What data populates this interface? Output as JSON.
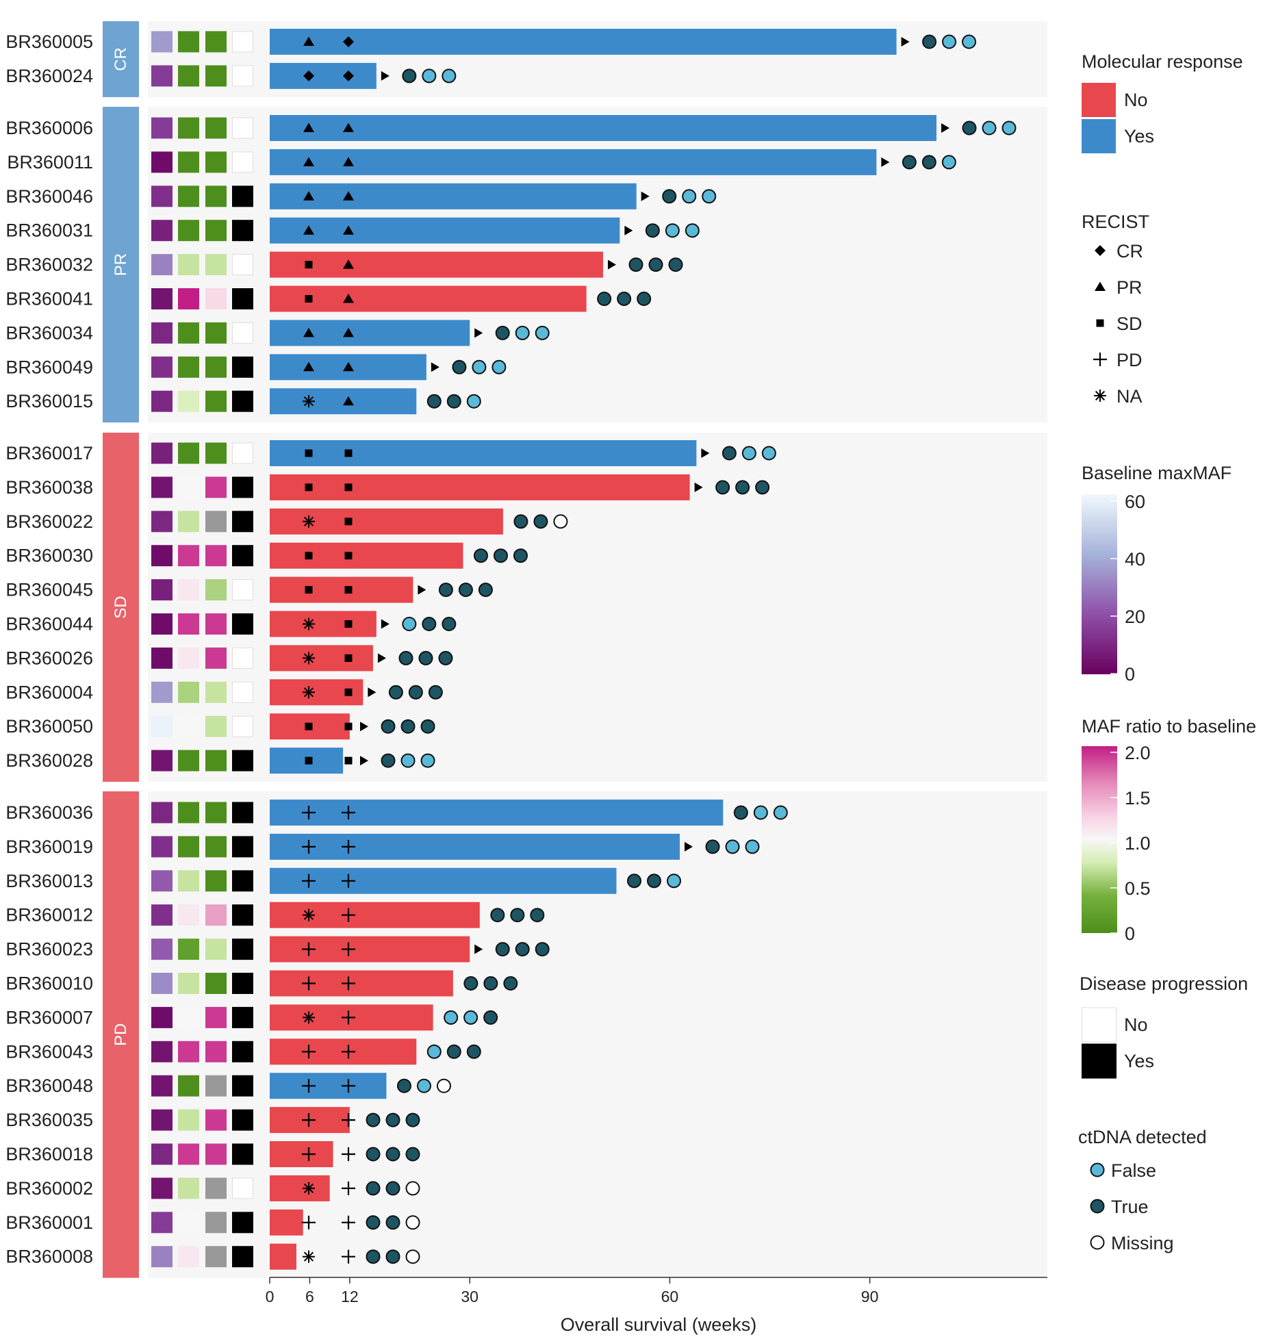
{
  "colors": {
    "response_no": "#E8474E",
    "response_yes": "#3D8ACB",
    "group_cr": "#6FA3D2",
    "group_pr": "#6FA3D2",
    "group_sd": "#E86369",
    "group_pd": "#E86369",
    "panel_bg": "#F6F6F6",
    "ctdna_false": "#5AB9D9",
    "ctdna_true": "#1E5563",
    "ctdna_missing": "#FFFFFF",
    "progression_yes": "#000000",
    "progression_no": "#FFFFFF"
  },
  "chart_data": {
    "type": "swimmer",
    "xlabel": "Overall survival (weeks)",
    "x_ticks": [
      0,
      6,
      12,
      30,
      60,
      90
    ],
    "xlim": [
      0,
      117
    ],
    "groups": [
      {
        "name": "CR",
        "patients": [
          {
            "id": "BR360005",
            "os": 94,
            "response": "Yes",
            "recist": [
              "PR",
              "CR"
            ],
            "ongoing": true,
            "maxmaf": 35,
            "maf_ratio": [
              0,
              0
            ],
            "progression": "No",
            "ctdna": [
              "True",
              "False",
              "False"
            ]
          },
          {
            "id": "BR360024",
            "os": 16,
            "response": "Yes",
            "recist": [
              "CR",
              "CR"
            ],
            "ongoing": true,
            "maxmaf": 15,
            "maf_ratio": [
              0,
              0
            ],
            "progression": "No",
            "ctdna": [
              "True",
              "False",
              "False"
            ]
          }
        ]
      },
      {
        "name": "PR",
        "patients": [
          {
            "id": "BR360006",
            "os": 100,
            "response": "Yes",
            "recist": [
              "PR",
              "PR"
            ],
            "ongoing": true,
            "maxmaf": 15,
            "maf_ratio": [
              0,
              0
            ],
            "progression": "No",
            "ctdna": [
              "True",
              "False",
              "False"
            ]
          },
          {
            "id": "BR360011",
            "os": 91,
            "response": "Yes",
            "recist": [
              "PR",
              "PR"
            ],
            "ongoing": true,
            "maxmaf": 3,
            "maf_ratio": [
              0,
              0
            ],
            "progression": "No",
            "ctdna": [
              "True",
              "True",
              "False"
            ]
          },
          {
            "id": "BR360046",
            "os": 55,
            "response": "Yes",
            "recist": [
              "PR",
              "PR"
            ],
            "ongoing": true,
            "maxmaf": 12,
            "maf_ratio": [
              0,
              0
            ],
            "progression": "Yes",
            "ctdna": [
              "True",
              "False",
              "False"
            ]
          },
          {
            "id": "BR360031",
            "os": 52.5,
            "response": "Yes",
            "recist": [
              "PR",
              "PR"
            ],
            "ongoing": true,
            "maxmaf": 8,
            "maf_ratio": [
              0,
              0
            ],
            "progression": "Yes",
            "ctdna": [
              "True",
              "False",
              "False"
            ]
          },
          {
            "id": "BR360032",
            "os": 50,
            "response": "No",
            "recist": [
              "SD",
              "PR"
            ],
            "ongoing": true,
            "maxmaf": 30,
            "maf_ratio": [
              0.7,
              0.7
            ],
            "progression": "No",
            "ctdna": [
              "True",
              "True",
              "True"
            ]
          },
          {
            "id": "BR360041",
            "os": 47.5,
            "response": "No",
            "recist": [
              "SD",
              "PR"
            ],
            "ongoing": false,
            "maxmaf": 5,
            "maf_ratio": [
              2.0,
              1.2
            ],
            "progression": "Yes",
            "ctdna": [
              "True",
              "True",
              "True"
            ]
          },
          {
            "id": "BR360034",
            "os": 30,
            "response": "Yes",
            "recist": [
              "PR",
              "PR"
            ],
            "ongoing": true,
            "maxmaf": 10,
            "maf_ratio": [
              0,
              0
            ],
            "progression": "No",
            "ctdna": [
              "True",
              "False",
              "False"
            ]
          },
          {
            "id": "BR360049",
            "os": 23.5,
            "response": "Yes",
            "recist": [
              "PR",
              "PR"
            ],
            "ongoing": true,
            "maxmaf": 12,
            "maf_ratio": [
              0,
              0
            ],
            "progression": "Yes",
            "ctdna": [
              "True",
              "False",
              "False"
            ]
          },
          {
            "id": "BR360015",
            "os": 22,
            "response": "Yes",
            "recist": [
              "NA",
              "PR"
            ],
            "ongoing": false,
            "maxmaf": 10,
            "maf_ratio": [
              0.8,
              0
            ],
            "progression": "Yes",
            "ctdna": [
              "True",
              "True",
              "False"
            ]
          }
        ]
      },
      {
        "name": "SD",
        "patients": [
          {
            "id": "BR360017",
            "os": 64,
            "response": "Yes",
            "recist": [
              "SD",
              "SD"
            ],
            "ongoing": true,
            "maxmaf": 8,
            "maf_ratio": [
              0,
              0
            ],
            "progression": "No",
            "ctdna": [
              "True",
              "False",
              "False"
            ]
          },
          {
            "id": "BR360038",
            "os": 63,
            "response": "No",
            "recist": [
              "SD",
              "SD"
            ],
            "ongoing": true,
            "maxmaf": 5,
            "maf_ratio": [
              1.0,
              1.9
            ],
            "progression": "Yes",
            "ctdna": [
              "True",
              "True",
              "True"
            ]
          },
          {
            "id": "BR360022",
            "os": 35,
            "response": "No",
            "recist": [
              "NA",
              "SD"
            ],
            "ongoing": false,
            "maxmaf": 10,
            "maf_ratio": [
              0.7,
              "NA"
            ],
            "progression": "Yes",
            "ctdna": [
              "True",
              "True",
              "Missing"
            ]
          },
          {
            "id": "BR360030",
            "os": 29,
            "response": "No",
            "recist": [
              "SD",
              "SD"
            ],
            "ongoing": false,
            "maxmaf": 3,
            "maf_ratio": [
              1.9,
              1.9
            ],
            "progression": "Yes",
            "ctdna": [
              "True",
              "True",
              "True"
            ]
          },
          {
            "id": "BR360045",
            "os": 21.5,
            "response": "No",
            "recist": [
              "SD",
              "SD"
            ],
            "ongoing": true,
            "maxmaf": 8,
            "maf_ratio": [
              1.1,
              0.6
            ],
            "progression": "No",
            "ctdna": [
              "True",
              "True",
              "True"
            ]
          },
          {
            "id": "BR360044",
            "os": 16,
            "response": "No",
            "recist": [
              "NA",
              "SD"
            ],
            "ongoing": true,
            "maxmaf": 3,
            "maf_ratio": [
              1.9,
              1.9
            ],
            "progression": "Yes",
            "ctdna": [
              "False",
              "True",
              "True"
            ]
          },
          {
            "id": "BR360026",
            "os": 15.5,
            "response": "No",
            "recist": [
              "NA",
              "SD"
            ],
            "ongoing": true,
            "maxmaf": 3,
            "maf_ratio": [
              1.1,
              1.9
            ],
            "progression": "No",
            "ctdna": [
              "True",
              "True",
              "True"
            ]
          },
          {
            "id": "BR360004",
            "os": 14,
            "response": "No",
            "recist": [
              "NA",
              "SD"
            ],
            "ongoing": true,
            "maxmaf": 35,
            "maf_ratio": [
              0.6,
              0.7
            ],
            "progression": "No",
            "ctdna": [
              "True",
              "True",
              "True"
            ]
          },
          {
            "id": "BR360050",
            "os": 12,
            "response": "No",
            "recist": [
              "SD",
              "SD"
            ],
            "ongoing": true,
            "maxmaf": 58,
            "maf_ratio": [
              1.0,
              0.7
            ],
            "progression": "No",
            "ctdna": [
              "True",
              "True",
              "True"
            ]
          },
          {
            "id": "BR360028",
            "os": 11,
            "response": "Yes",
            "recist": [
              "SD",
              "SD"
            ],
            "ongoing": true,
            "maxmaf": 5,
            "maf_ratio": [
              0,
              0
            ],
            "progression": "Yes",
            "ctdna": [
              "True",
              "False",
              "False"
            ]
          }
        ]
      },
      {
        "name": "PD",
        "patients": [
          {
            "id": "BR360036",
            "os": 68,
            "response": "Yes",
            "recist": [
              "PD",
              "PD"
            ],
            "ongoing": false,
            "maxmaf": 10,
            "maf_ratio": [
              0,
              0
            ],
            "progression": "Yes",
            "ctdna": [
              "True",
              "False",
              "False"
            ]
          },
          {
            "id": "BR360019",
            "os": 61.5,
            "response": "Yes",
            "recist": [
              "PD",
              "PD"
            ],
            "ongoing": true,
            "maxmaf": 12,
            "maf_ratio": [
              0,
              0
            ],
            "progression": "Yes",
            "ctdna": [
              "True",
              "False",
              "False"
            ]
          },
          {
            "id": "BR360013",
            "os": 52,
            "response": "Yes",
            "recist": [
              "PD",
              "PD"
            ],
            "ongoing": false,
            "maxmaf": 22,
            "maf_ratio": [
              0.7,
              0
            ],
            "progression": "Yes",
            "ctdna": [
              "True",
              "True",
              "False"
            ]
          },
          {
            "id": "BR360012",
            "os": 31.5,
            "response": "No",
            "recist": [
              "NA",
              "PD"
            ],
            "ongoing": false,
            "maxmaf": 12,
            "maf_ratio": [
              1.1,
              1.5
            ],
            "progression": "Yes",
            "ctdna": [
              "True",
              "True",
              "True"
            ]
          },
          {
            "id": "BR360023",
            "os": 30,
            "response": "No",
            "recist": [
              "PD",
              "PD"
            ],
            "ongoing": true,
            "maxmaf": 22,
            "maf_ratio": [
              0.2,
              0.7
            ],
            "progression": "Yes",
            "ctdna": [
              "True",
              "True",
              "True"
            ]
          },
          {
            "id": "BR360010",
            "os": 27.5,
            "response": "No",
            "recist": [
              "PD",
              "PD"
            ],
            "ongoing": false,
            "maxmaf": 32,
            "maf_ratio": [
              0.7,
              0
            ],
            "progression": "Yes",
            "ctdna": [
              "True",
              "True",
              "True"
            ]
          },
          {
            "id": "BR360007",
            "os": 24.5,
            "response": "No",
            "recist": [
              "NA",
              "PD"
            ],
            "ongoing": false,
            "maxmaf": 3,
            "maf_ratio": [
              1.0,
              1.9
            ],
            "progression": "Yes",
            "ctdna": [
              "False",
              "False",
              "True"
            ]
          },
          {
            "id": "BR360043",
            "os": 22,
            "response": "No",
            "recist": [
              "PD",
              "PD"
            ],
            "ongoing": false,
            "maxmaf": 5,
            "maf_ratio": [
              1.9,
              1.9
            ],
            "progression": "Yes",
            "ctdna": [
              "False",
              "True",
              "True"
            ]
          },
          {
            "id": "BR360048",
            "os": 17.5,
            "response": "Yes",
            "recist": [
              "PD",
              "PD"
            ],
            "ongoing": false,
            "maxmaf": 5,
            "maf_ratio": [
              0,
              "NA"
            ],
            "progression": "Yes",
            "ctdna": [
              "True",
              "False",
              "Missing"
            ]
          },
          {
            "id": "BR360035",
            "os": 12,
            "response": "No",
            "recist": [
              "PD",
              "PD"
            ],
            "ongoing": false,
            "maxmaf": 5,
            "maf_ratio": [
              0.7,
              1.9
            ],
            "progression": "Yes",
            "ctdna": [
              "True",
              "True",
              "True"
            ]
          },
          {
            "id": "BR360018",
            "os": 9.5,
            "response": "No",
            "recist": [
              "PD",
              "PD"
            ],
            "ongoing": false,
            "maxmaf": 10,
            "maf_ratio": [
              1.9,
              1.9
            ],
            "progression": "Yes",
            "ctdna": [
              "True",
              "True",
              "True"
            ]
          },
          {
            "id": "BR360002",
            "os": 9,
            "response": "No",
            "recist": [
              "NA",
              "PD"
            ],
            "ongoing": false,
            "maxmaf": 5,
            "maf_ratio": [
              0.7,
              "NA"
            ],
            "progression": "No",
            "ctdna": [
              "True",
              "True",
              "Missing"
            ]
          },
          {
            "id": "BR360001",
            "os": 5,
            "response": "No",
            "recist": [
              "PD",
              "PD"
            ],
            "ongoing": false,
            "maxmaf": 15,
            "maf_ratio": [
              1.0,
              "NA"
            ],
            "progression": "Yes",
            "ctdna": [
              "True",
              "True",
              "Missing"
            ]
          },
          {
            "id": "BR360008",
            "os": 4,
            "response": "No",
            "recist": [
              "NA",
              "PD"
            ],
            "ongoing": false,
            "maxmaf": 30,
            "maf_ratio": [
              1.1,
              "NA"
            ],
            "progression": "Yes",
            "ctdna": [
              "True",
              "True",
              "Missing"
            ]
          }
        ]
      }
    ]
  },
  "legend": {
    "molecular_response": {
      "title": "Molecular response",
      "items": [
        "No",
        "Yes"
      ]
    },
    "recist": {
      "title": "RECIST",
      "items": [
        "CR",
        "PR",
        "SD",
        "PD",
        "NA"
      ]
    },
    "baseline_maxmaf": {
      "title": "Baseline maxMAF",
      "ticks": [
        "60",
        "40",
        "20",
        "0"
      ]
    },
    "maf_ratio": {
      "title": "MAF ratio to baseline",
      "ticks": [
        "2.0",
        "1.5",
        "1.0",
        "0.5",
        "0"
      ]
    },
    "disease_progression": {
      "title": "Disease progression",
      "items": [
        "No",
        "Yes"
      ]
    },
    "ctdna_detected": {
      "title": "ctDNA detected",
      "items": [
        "False",
        "True",
        "Missing"
      ]
    }
  }
}
